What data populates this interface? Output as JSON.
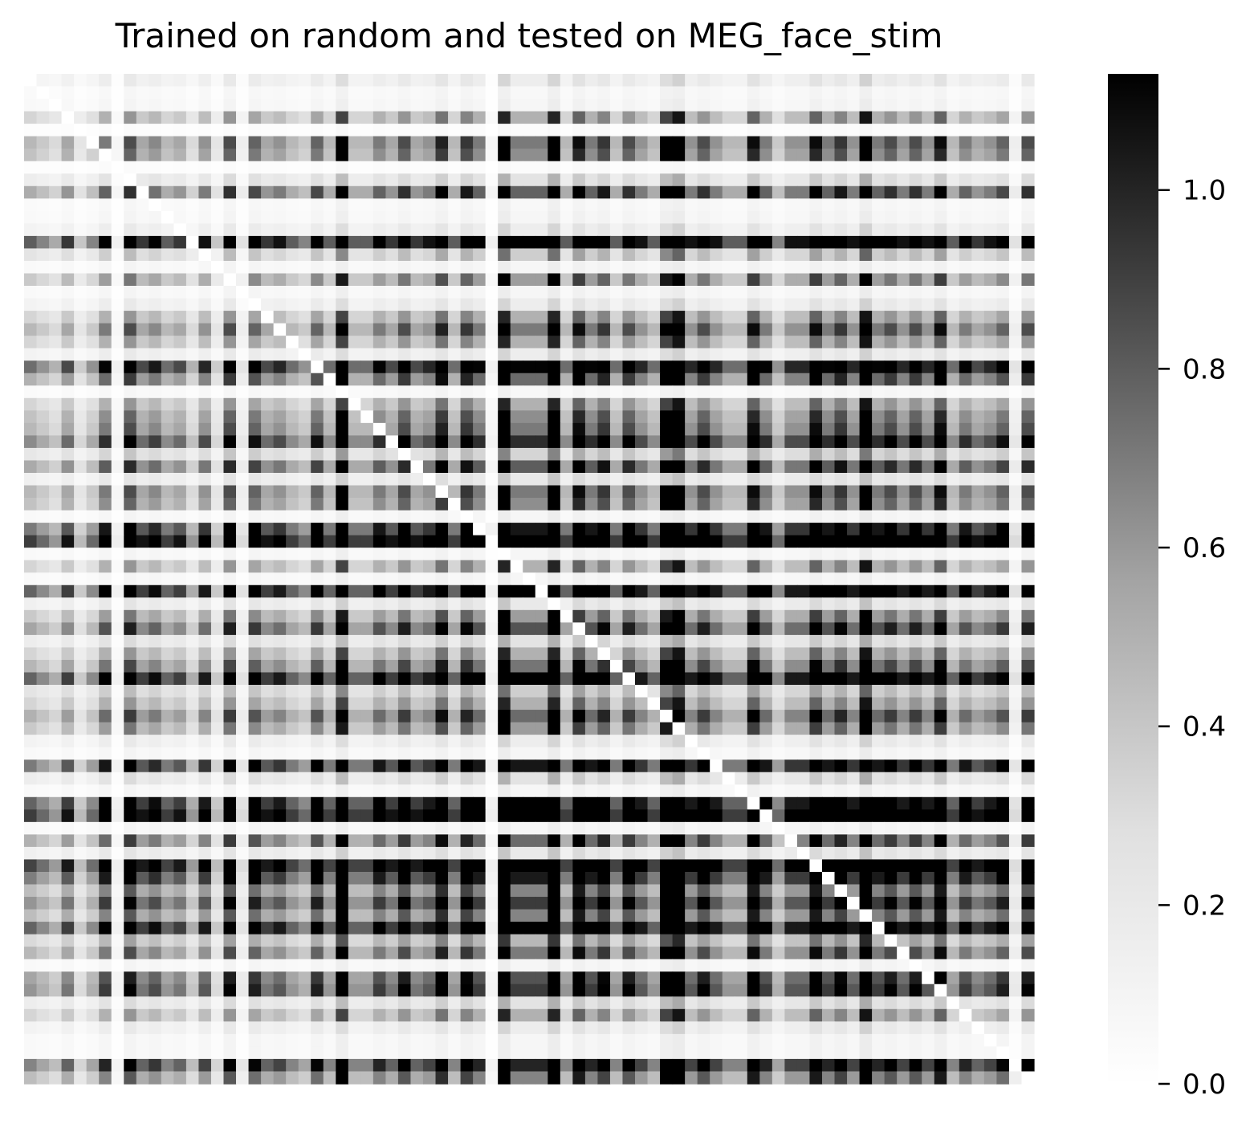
{
  "chart_data": {
    "type": "heatmap",
    "title": "Trained on random and tested on MEG_face_stim",
    "xlabel": "",
    "ylabel": "",
    "grid": false,
    "colormap": "Greys",
    "colorbar": {
      "vmin": 0.0,
      "vmax": 1.13,
      "ticks": [
        0.0,
        0.2,
        0.4,
        0.6,
        0.8,
        1.0
      ],
      "tick_labels": [
        "0.0",
        "0.2",
        "0.4",
        "0.6",
        "0.8",
        "1.0"
      ],
      "location": "right"
    },
    "matrix_size": 81,
    "row_factors": [
      0.1,
      0.04,
      0.05,
      0.3,
      0.02,
      0.42,
      0.38,
      0.02,
      0.15,
      0.47,
      0.04,
      0.05,
      0.1,
      0.72,
      0.22,
      0.05,
      0.35,
      0.05,
      0.1,
      0.3,
      0.42,
      0.3,
      0.1,
      0.67,
      0.45,
      0.04,
      0.3,
      0.38,
      0.42,
      0.58,
      0.2,
      0.48,
      0.12,
      0.42,
      0.38,
      0.05,
      0.63,
      0.82,
      0.05,
      0.3,
      0.05,
      0.7,
      0.12,
      0.35,
      0.5,
      0.15,
      0.3,
      0.43,
      0.7,
      0.22,
      0.3,
      0.45,
      0.35,
      0.1,
      0.05,
      0.63,
      0.15,
      0.05,
      0.7,
      0.82,
      0.05,
      0.45,
      0.12,
      0.8,
      0.62,
      0.4,
      0.55,
      0.4,
      0.7,
      0.28,
      0.42,
      0.05,
      0.5,
      0.55,
      0.15,
      0.3,
      0.1,
      0.05,
      0.05,
      0.6,
      0.4
    ],
    "col_factors": [
      0.3,
      0.25,
      0.2,
      0.35,
      0.15,
      0.25,
      0.45,
      0.05,
      0.55,
      0.35,
      0.42,
      0.3,
      0.35,
      0.2,
      0.4,
      0.15,
      0.55,
      0.1,
      0.5,
      0.35,
      0.4,
      0.3,
      0.25,
      0.5,
      0.3,
      0.8,
      0.3,
      0.3,
      0.45,
      0.35,
      0.55,
      0.35,
      0.4,
      0.65,
      0.3,
      0.6,
      0.45,
      0.05,
      0.9,
      0.45,
      0.45,
      0.45,
      0.9,
      0.3,
      0.7,
      0.45,
      0.6,
      0.3,
      0.55,
      0.4,
      0.3,
      0.8,
      0.95,
      0.4,
      0.55,
      0.4,
      0.3,
      0.3,
      0.7,
      0.45,
      0.25,
      0.4,
      0.4,
      0.7,
      0.45,
      0.6,
      0.4,
      0.95,
      0.45,
      0.55,
      0.4,
      0.55,
      0.4,
      0.7,
      0.3,
      0.45,
      0.35,
      0.4,
      0.5,
      0.1,
      0.55
    ],
    "value_rule": "value[i][j] = 1.13 * min(1, 1.15 * row_factors[i] * col_factors[j] / 0.35); diagonal = 0"
  }
}
